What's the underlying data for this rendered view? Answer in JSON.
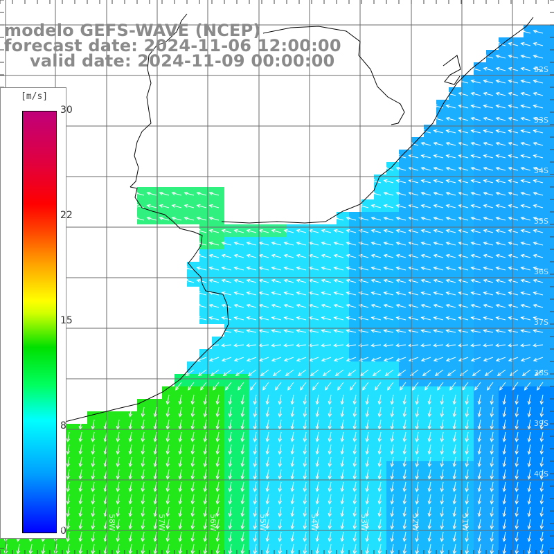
{
  "title": {
    "line1": "modelo GEFS-WAVE (NCEP)",
    "line2": "forecast date: 2024-11-06 12:00:00",
    "line3": "valid date: 2024-11-09 00:00:00"
  },
  "colorbar": {
    "unit": "[m/s]",
    "ticks": [
      "30",
      "22",
      "15",
      "8",
      "0"
    ],
    "colors": [
      "#0000ff",
      "#00a0ff",
      "#00ffff",
      "#00ff60",
      "#00e000",
      "#ffff00",
      "#ffa000",
      "#ff0000",
      "#c0007a"
    ]
  },
  "lat_labels": [
    "32S",
    "33S",
    "34S",
    "35S",
    "36S",
    "37S",
    "38S",
    "39S",
    "40S"
  ],
  "lon_labels": [
    "60W",
    "59W",
    "58W",
    "57W",
    "56W",
    "55W",
    "54W",
    "53W",
    "52W",
    "51W"
  ],
  "colors": {
    "land": "#ffffff",
    "coast": "#000000",
    "grid": "#6a6a6a",
    "arrows": "#ffffff"
  }
}
